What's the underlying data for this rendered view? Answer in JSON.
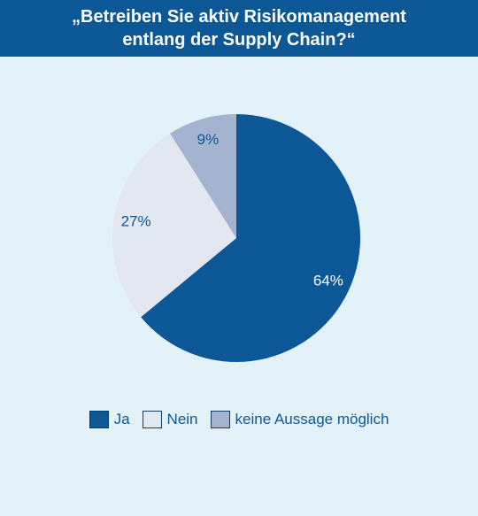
{
  "chart_data": {
    "type": "pie",
    "title": "„Betreiben Sie aktiv Risikomanagement entlang der Supply Chain?“",
    "title_lines": [
      "„Betreiben Sie aktiv Risikomanagement",
      "entlang der Supply Chain?“"
    ],
    "series": [
      {
        "name": "Ja",
        "value": 64,
        "label": "64%",
        "color": "#0c5896",
        "label_color": "#ffffff"
      },
      {
        "name": "Nein",
        "value": 27,
        "label": "27%",
        "color": "#e3e8f0",
        "label_color": "#0c5896"
      },
      {
        "name": "keine Aussage möglich",
        "value": 9,
        "label": "9%",
        "color": "#a4b4d0",
        "label_color": "#0c5896"
      }
    ],
    "legend_position": "bottom"
  }
}
